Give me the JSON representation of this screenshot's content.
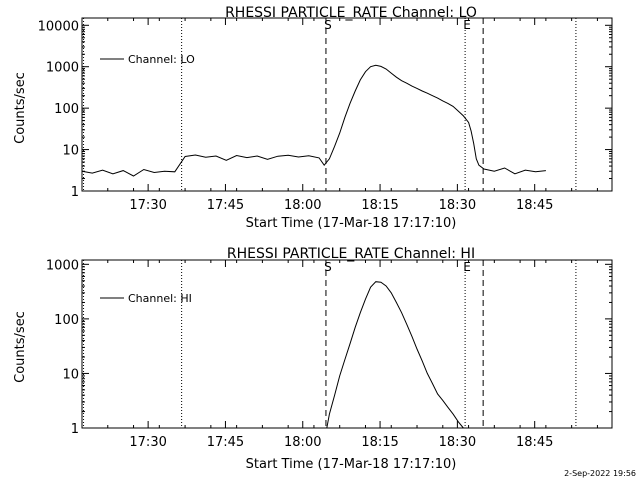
{
  "footer_timestamp": "2-Sep-2022 19:56",
  "chart_data": [
    {
      "type": "line",
      "title": "RHESSI PARTICLE_RATE Channel: LO",
      "xlabel": "Start Time (17-Mar-18 17:17:10)",
      "ylabel": "Counts/sec",
      "yscale": "log",
      "ylim": [
        1,
        15000
      ],
      "xlim_minutes": [
        0,
        102.83
      ],
      "x_tick_labels": [
        "17:30",
        "17:45",
        "18:00",
        "18:15",
        "18:30",
        "18:45"
      ],
      "x_tick_minutes": [
        12.83,
        27.83,
        42.83,
        57.83,
        72.83,
        87.83
      ],
      "y_tick_labels": [
        "1",
        "10",
        "100",
        "1000",
        "10000"
      ],
      "y_tick_values": [
        1,
        10,
        100,
        1000,
        10000
      ],
      "legend": {
        "label": "Channel: LO",
        "placement": "top-left"
      },
      "series": [
        {
          "name": "Channel: LO",
          "x_minutes": [
            0,
            2,
            4,
            6,
            8,
            10,
            12,
            14,
            16,
            18,
            20,
            22,
            24,
            26,
            28,
            30,
            32,
            34,
            36,
            38,
            40,
            42,
            44,
            46,
            47,
            48,
            49,
            50,
            51,
            52,
            53,
            54,
            55,
            56,
            57,
            58,
            59,
            60,
            61,
            62,
            63,
            64,
            65,
            66,
            67,
            68,
            69,
            70,
            71,
            72,
            73,
            74,
            75,
            75.5,
            76,
            76.5,
            77,
            78,
            80,
            82,
            84,
            86,
            88,
            90
          ],
          "values": [
            3,
            2.7,
            3.2,
            2.6,
            3.1,
            2.3,
            3.3,
            2.8,
            3.0,
            2.9,
            6.8,
            7.4,
            6.5,
            7.0,
            5.5,
            7.2,
            6.4,
            7.0,
            5.8,
            6.9,
            7.3,
            6.6,
            7.1,
            6.3,
            4.2,
            6,
            12,
            25,
            60,
            130,
            260,
            480,
            760,
            1000,
            1080,
            1020,
            880,
            700,
            560,
            460,
            400,
            340,
            300,
            260,
            230,
            200,
            175,
            150,
            130,
            110,
            85,
            65,
            45,
            28,
            14,
            6,
            4.2,
            3.4,
            3.0,
            3.6,
            2.6,
            3.2,
            2.9,
            3.1
          ]
        }
      ],
      "markers": [
        {
          "label": "",
          "x_minutes": 0.3,
          "style": "dotted"
        },
        {
          "label": "",
          "x_minutes": 19.33,
          "style": "dotted"
        },
        {
          "label": "S",
          "x_minutes": 47.33,
          "style": "dashed"
        },
        {
          "label": "E",
          "x_minutes": 74.33,
          "style": "dotted"
        },
        {
          "label": "",
          "x_minutes": 77.83,
          "style": "dashed"
        },
        {
          "label": "",
          "x_minutes": 95.83,
          "style": "dotted"
        }
      ]
    },
    {
      "type": "line",
      "title": "RHESSI PARTICLE_RATE Channel: HI",
      "xlabel": "Start Time (17-Mar-18 17:17:10)",
      "ylabel": "Counts/sec",
      "yscale": "log",
      "ylim": [
        1,
        1200
      ],
      "xlim_minutes": [
        0,
        102.83
      ],
      "x_tick_labels": [
        "17:30",
        "17:45",
        "18:00",
        "18:15",
        "18:30",
        "18:45"
      ],
      "x_tick_minutes": [
        12.83,
        27.83,
        42.83,
        57.83,
        72.83,
        87.83
      ],
      "y_tick_labels": [
        "1",
        "10",
        "100",
        "1000"
      ],
      "y_tick_values": [
        1,
        10,
        100,
        1000
      ],
      "legend": {
        "label": "Channel: HI",
        "placement": "top-left"
      },
      "series": [
        {
          "name": "Channel: HI",
          "x_minutes": [
            47.5,
            48,
            49,
            50,
            51,
            52,
            53,
            54,
            55,
            56,
            57,
            58,
            59,
            60,
            61,
            62,
            63,
            64,
            65,
            66,
            67,
            68,
            69,
            70,
            71,
            72,
            73,
            74
          ],
          "values": [
            1,
            1.8,
            4,
            9,
            18,
            35,
            70,
            130,
            230,
            380,
            480,
            470,
            400,
            300,
            200,
            130,
            80,
            48,
            28,
            17,
            10,
            6.5,
            4.2,
            3.2,
            2.4,
            1.8,
            1.3,
            1
          ]
        }
      ],
      "markers": [
        {
          "label": "",
          "x_minutes": 0.3,
          "style": "dotted"
        },
        {
          "label": "",
          "x_minutes": 19.33,
          "style": "dotted"
        },
        {
          "label": "S",
          "x_minutes": 47.33,
          "style": "dashed"
        },
        {
          "label": "E",
          "x_minutes": 74.33,
          "style": "dotted"
        },
        {
          "label": "",
          "x_minutes": 77.83,
          "style": "dashed"
        },
        {
          "label": "",
          "x_minutes": 95.83,
          "style": "dotted"
        }
      ]
    }
  ]
}
